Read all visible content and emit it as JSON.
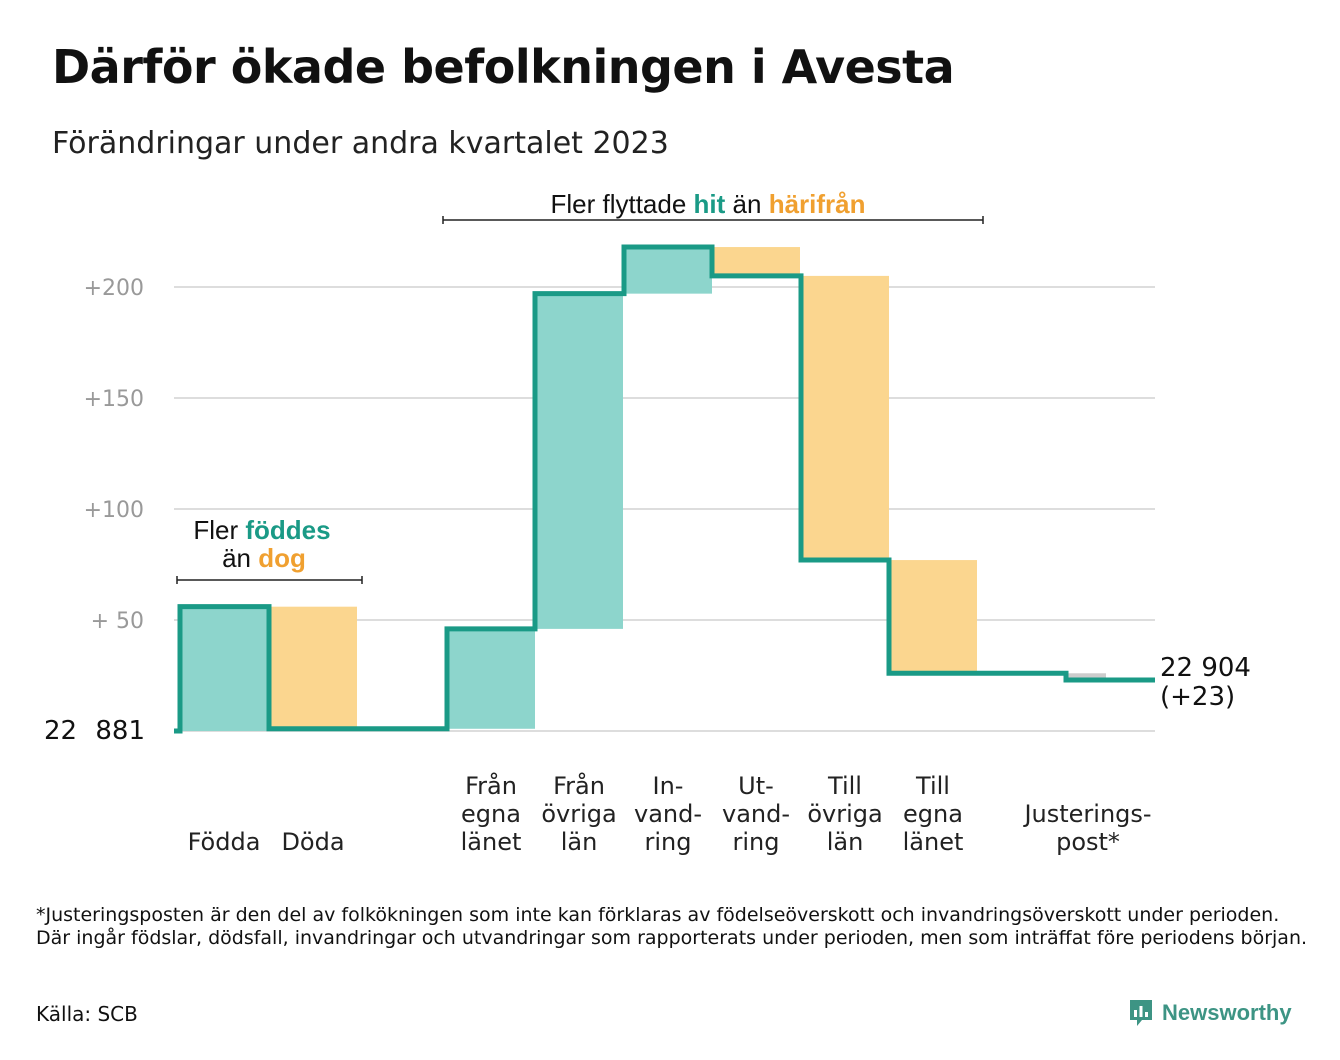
{
  "title": "Därför ökade befolkningen i Avesta",
  "subtitle": "Förändringar under andra kvartalet 2023",
  "footnote": "*Justeringsposten är den del av folkökningen som inte kan förklaras av födelseöverskott och invandringsöverskott under perioden. Där ingår födslar, dödsfall, invandringar och utvandringar som rapporterats under perioden, men som inträffat före periodens början.",
  "source": "Källa: SCB",
  "brand": {
    "name": "Newsworthy",
    "icon": "newsworthy-logo-icon"
  },
  "colors": {
    "increase": "#8dd5cc",
    "decrease": "#fbd68f",
    "adjustment": "#cccccc",
    "line": "#1a9a86",
    "teal_text": "#1a9a86",
    "orange_text": "#f0a030",
    "grid": "#dddddd",
    "tick": "#999999"
  },
  "annotations": {
    "births": {
      "line1_plain": "Fler",
      "line1_colored": "föddes",
      "line2_plain": "än",
      "line2_colored": "dog"
    },
    "migration": {
      "plain1": "Fler flyttade",
      "colored1": "hit",
      "plain2": "än",
      "colored2": "härifrån"
    }
  },
  "chart_data": {
    "type": "waterfall",
    "title": "Därför ökade befolkningen i Avesta",
    "subtitle": "Förändringar under andra kvartalet 2023",
    "start_label": "22 881",
    "end_label": "22 904",
    "end_change_label": "(+23)",
    "start_value": 22881,
    "end_value": 22904,
    "y_axis": {
      "min": 0,
      "max": 220,
      "ticks": [
        {
          "value": 200,
          "label": "+200"
        },
        {
          "value": 150,
          "label": "+150"
        },
        {
          "value": 100,
          "label": "+100"
        },
        {
          "value": 50,
          "label": "+  50"
        }
      ]
    },
    "grid": true,
    "steps": [
      {
        "label_lines": [
          "Födda"
        ],
        "change": 56,
        "type": "increase"
      },
      {
        "label_lines": [
          "Döda"
        ],
        "change": -55,
        "type": "decrease"
      },
      {
        "label_lines": [
          "Från",
          "egna",
          "länet"
        ],
        "change": 45,
        "type": "increase"
      },
      {
        "label_lines": [
          "Från",
          "övriga",
          "län"
        ],
        "change": 151,
        "type": "increase"
      },
      {
        "label_lines": [
          "In-",
          "vand-",
          "ring"
        ],
        "change": 21,
        "type": "increase"
      },
      {
        "label_lines": [
          "Ut-",
          "vand-",
          "ring"
        ],
        "change": -13,
        "type": "decrease"
      },
      {
        "label_lines": [
          "Till",
          "övriga",
          "län"
        ],
        "change": -128,
        "type": "decrease"
      },
      {
        "label_lines": [
          "Till",
          "egna",
          "länet"
        ],
        "change": -51,
        "type": "decrease"
      },
      {
        "label_lines": [
          "Justerings-",
          "post*"
        ],
        "change": -3,
        "type": "adjustment"
      }
    ],
    "total_change": 23
  }
}
